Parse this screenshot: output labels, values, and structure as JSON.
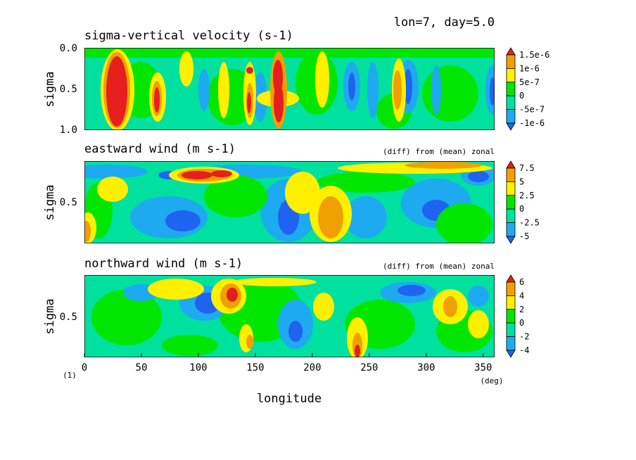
{
  "header": "lon=7, day=5.0",
  "units": {
    "left": "(1)",
    "right": "(deg)"
  },
  "colors": {
    "palette": [
      "#1e64f0",
      "#1eaaf0",
      "#00e1a0",
      "#00e600",
      "#fff000",
      "#f0a000",
      "#e61e1e"
    ],
    "frame": "#000000"
  },
  "chart_data": [
    {
      "type": "heatmap",
      "title": "sigma-vertical velocity (s-1)",
      "subtitle": "",
      "ylabel": "sigma",
      "yticks": [
        "0.0",
        "0.5",
        "1.0"
      ],
      "ylim": [
        0.0,
        1.0
      ],
      "xlim": [
        0,
        360
      ],
      "colorbar": {
        "labels": [
          "1.5e-6",
          "1e-6",
          "5e-7",
          "0",
          "-5e-7",
          "-1e-6"
        ],
        "levels": [
          1.5e-06,
          1e-06,
          5e-07,
          0,
          -5e-07,
          -1e-06
        ]
      },
      "features": [
        {
          "lon": 30,
          "sigma": 0.55,
          "value": 2e-06
        },
        {
          "lon": 65,
          "sigma": 0.6,
          "value": 1.3e-06
        },
        {
          "lon": 90,
          "sigma": 0.35,
          "value": 8e-07
        },
        {
          "lon": 145,
          "sigma": 0.6,
          "value": 1.6e-06
        },
        {
          "lon": 168,
          "sigma": 0.55,
          "value": 2e-06
        },
        {
          "lon": 275,
          "sigma": 0.5,
          "value": 1.2e-06
        },
        {
          "lon": 230,
          "sigma": 0.5,
          "value": -8e-07
        },
        {
          "lon": 305,
          "sigma": 0.6,
          "value": -6e-07
        }
      ]
    },
    {
      "type": "heatmap",
      "title": "eastward wind (m s-1)",
      "subtitle": "(diff) from (mean) zonal",
      "ylabel": "sigma",
      "yticks": [
        "0.5"
      ],
      "xlim": [
        0,
        360
      ],
      "colorbar": {
        "labels": [
          "7.5",
          "5",
          "2.5",
          "0",
          "-2.5",
          "-5"
        ],
        "levels": [
          7.5,
          5,
          2.5,
          0,
          -2.5,
          -5
        ]
      },
      "features": [
        {
          "lon": 105,
          "sigma": 0.2,
          "value": 8.5
        },
        {
          "lon": 200,
          "sigma": 0.5,
          "value": 4.0
        },
        {
          "lon": 215,
          "sigma": 0.8,
          "value": 6.0
        },
        {
          "lon": 320,
          "sigma": 0.1,
          "value": 5.0
        },
        {
          "lon": 60,
          "sigma": 0.5,
          "value": -5.0
        },
        {
          "lon": 330,
          "sigma": 0.3,
          "value": -5.0
        }
      ]
    },
    {
      "type": "heatmap",
      "title": "northward wind (m s-1)",
      "subtitle": "(diff) from (mean) zonal",
      "ylabel": "sigma",
      "yticks": [
        "0.5"
      ],
      "xlabel": "longitude",
      "xticks": [
        "0",
        "50",
        "100",
        "150",
        "200",
        "250",
        "300",
        "350"
      ],
      "xlim": [
        0,
        360
      ],
      "colorbar": {
        "labels": [
          "6",
          "4",
          "2",
          "0",
          "-2",
          "-4"
        ],
        "levels": [
          6,
          4,
          2,
          0,
          -2,
          -4
        ]
      },
      "features": [
        {
          "lon": 130,
          "sigma": 0.2,
          "value": 6.5
        },
        {
          "lon": 237,
          "sigma": 0.95,
          "value": 7.0
        },
        {
          "lon": 330,
          "sigma": 0.5,
          "value": 3.5
        },
        {
          "lon": 105,
          "sigma": 0.3,
          "value": -4.5
        },
        {
          "lon": 285,
          "sigma": 0.3,
          "value": -4.0
        }
      ]
    }
  ]
}
